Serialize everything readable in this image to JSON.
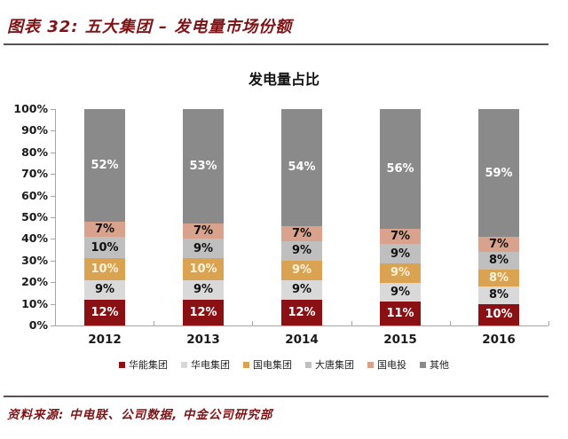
{
  "header": {
    "title": "图表 32: 五大集团 – 发电量市场份额"
  },
  "chart_data": {
    "type": "bar",
    "variant": "stacked-column",
    "title": "发电量占比",
    "categories": [
      "2012",
      "2013",
      "2014",
      "2015",
      "2016"
    ],
    "series": [
      {
        "name": "华能集团",
        "color": "#8B1014",
        "label_color": "#FFFFFF",
        "values": [
          12,
          12,
          12,
          11,
          10
        ]
      },
      {
        "name": "华电集团",
        "color": "#D9D9D9",
        "label_color": "#111111",
        "values": [
          9,
          9,
          9,
          9,
          8
        ]
      },
      {
        "name": "国电集团",
        "color": "#D9A351",
        "label_color": "#FDF3DC",
        "values": [
          10,
          10,
          9,
          9,
          8
        ]
      },
      {
        "name": "大唐集团",
        "color": "#BFBFBF",
        "label_color": "#111111",
        "values": [
          10,
          9,
          9,
          9,
          8
        ]
      },
      {
        "name": "国电投",
        "color": "#D9A28C",
        "label_color": "#111111",
        "values": [
          7,
          7,
          7,
          7,
          7
        ]
      },
      {
        "name": "其他",
        "color": "#8A8A8A",
        "label_color": "#FFFFFF",
        "values": [
          52,
          53,
          54,
          56,
          59
        ]
      }
    ],
    "unit": "%",
    "ylim": [
      0,
      100
    ],
    "ytick_step": 10,
    "grid": false,
    "legend_position": "bottom",
    "axis_color": "#A6A6A6"
  },
  "source": {
    "text": "资料来源: 中电联、公司数据, 中金公司研究部"
  }
}
